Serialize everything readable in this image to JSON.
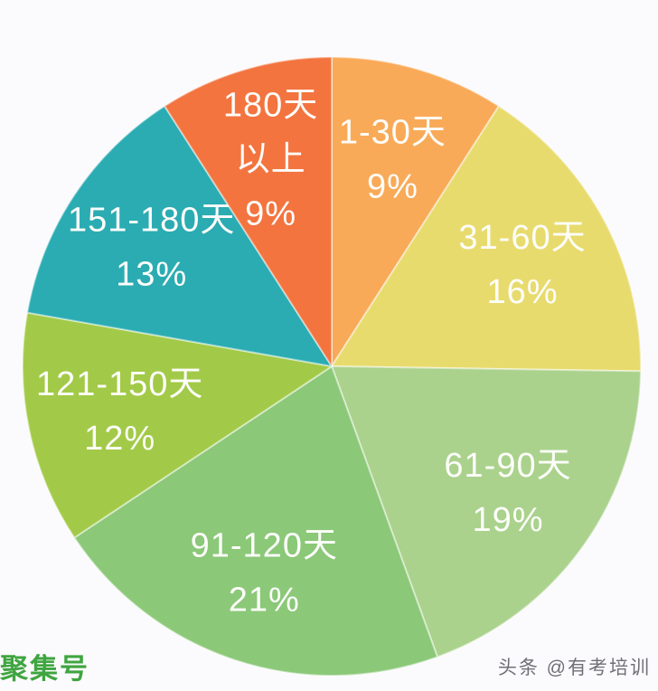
{
  "watermarks": {
    "bottom_left": "聚集号",
    "bottom_right": "头条 @有考培训"
  },
  "chart_data": {
    "type": "pie",
    "unit_note": "天 = days",
    "start_angle_deg": 0,
    "direction": "clockwise",
    "legend_position": "none",
    "labels_on_slices": true,
    "label_color": "#FDFDFB",
    "slice_border_color": "rgba(255,255,255,0.45)",
    "background_color": "#FBFAFC",
    "categories": [
      "1-30天",
      "31-60天",
      "61-90天",
      "91-120天",
      "121-150天",
      "151-180天",
      "180天以上"
    ],
    "values": [
      9,
      16,
      19,
      21,
      12,
      13,
      9
    ],
    "slices": [
      {
        "category": "1-30天",
        "value_pct": 9,
        "color": "#F9AA58",
        "label_lines": [
          "1-30天",
          "9%"
        ]
      },
      {
        "category": "31-60天",
        "value_pct": 16,
        "color": "#E8DB6E",
        "label_lines": [
          "31-60天",
          "16%"
        ]
      },
      {
        "category": "61-90天",
        "value_pct": 19,
        "color": "#AAD28C",
        "label_lines": [
          "61-90天",
          "19%"
        ]
      },
      {
        "category": "91-120天",
        "value_pct": 21,
        "color": "#8BC878",
        "label_lines": [
          "91-120天",
          "21%"
        ]
      },
      {
        "category": "121-150天",
        "value_pct": 12,
        "color": "#A2CA48",
        "label_lines": [
          "121-150天",
          "12%"
        ]
      },
      {
        "category": "151-180天",
        "value_pct": 13,
        "color": "#2AACB2",
        "label_lines": [
          "151-180天",
          "13%"
        ]
      },
      {
        "category": "180天以上",
        "value_pct": 9,
        "color": "#F3743F",
        "label_lines": [
          "180天",
          "以上",
          "9%"
        ]
      }
    ]
  }
}
